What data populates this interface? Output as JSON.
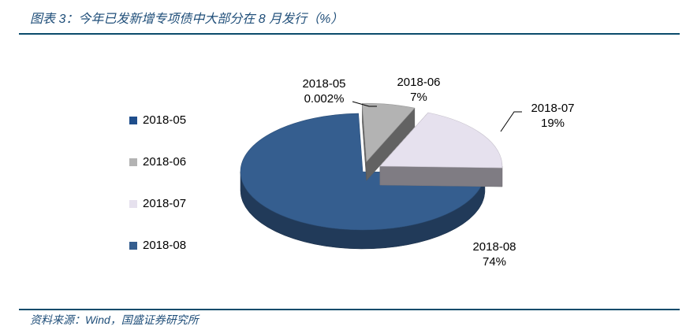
{
  "title": "图表 3：今年已发新增专项债中大部分在 8 月发行（%）",
  "source": "资料来源：Wind，国盛证券研究所",
  "chart_data": {
    "type": "pie",
    "style": "3d-exploded",
    "legend_position": "left",
    "slices": [
      {
        "label": "2018-05",
        "value": 0.002,
        "display_value": "0.002%",
        "color": "#1f4e8c"
      },
      {
        "label": "2018-06",
        "value": 7,
        "display_value": "7%",
        "color": "#b3b3b3"
      },
      {
        "label": "2018-07",
        "value": 19,
        "display_value": "19%",
        "color": "#e6e1ee"
      },
      {
        "label": "2018-08",
        "value": 74,
        "display_value": "74%",
        "color": "#355e8f"
      }
    ]
  }
}
